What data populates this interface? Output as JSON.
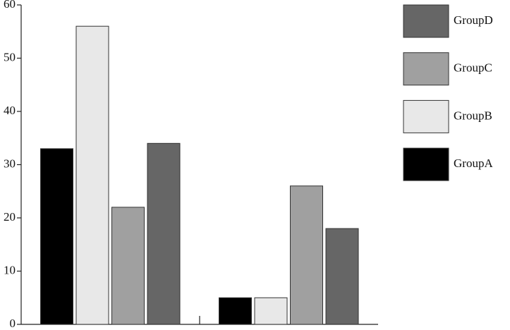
{
  "chart_data": {
    "type": "bar",
    "categories": [
      null,
      null
    ],
    "series": [
      {
        "name": "GroupA",
        "color": "#000000",
        "values": [
          33,
          5
        ]
      },
      {
        "name": "GroupB",
        "color": "#e8e8e8",
        "values": [
          56,
          5
        ]
      },
      {
        "name": "GroupC",
        "color": "#a0a0a0",
        "values": [
          22,
          26
        ]
      },
      {
        "name": "GroupD",
        "color": "#666666",
        "values": [
          34,
          18
        ]
      }
    ],
    "ylim": [
      0,
      60
    ],
    "yticks": [
      0,
      10,
      20,
      30,
      40,
      50,
      60
    ],
    "legend": "right",
    "grid": false
  }
}
